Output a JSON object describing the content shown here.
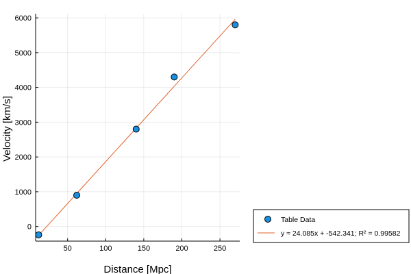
{
  "chart_data": {
    "type": "scatter",
    "title": "",
    "xlabel": "Distance [Mpc]",
    "ylabel": "Velocity [km/s]",
    "xlim": [
      8,
      276
    ],
    "ylim": [
      -420,
      6120
    ],
    "xticks": [
      50,
      100,
      150,
      200,
      250
    ],
    "yticks": [
      0,
      1000,
      2000,
      3000,
      4000,
      5000,
      6000
    ],
    "grid": true,
    "legend_position": "outside-bottom-right",
    "series": [
      {
        "name": "Table Data",
        "kind": "scatter",
        "color": "#1a8fe0",
        "x": [
          12,
          62,
          140,
          190,
          270
        ],
        "y": [
          -240,
          900,
          2800,
          4300,
          5800
        ]
      },
      {
        "name": "y ≈ 24.085x + -542.341; R² = 0.99582",
        "kind": "line",
        "color": "#e2602a",
        "x": [
          12,
          270
        ],
        "y": [
          -253.321,
          5960.609
        ]
      }
    ]
  }
}
